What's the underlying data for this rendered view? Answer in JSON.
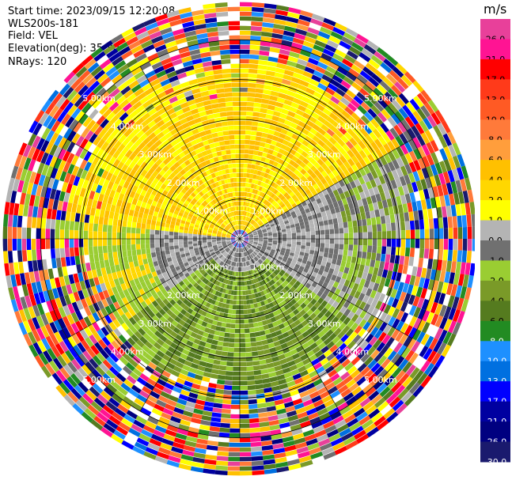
{
  "header": {
    "start_time": "Start time: 2023/09/15 12:20:08",
    "site": "WLS200s-181",
    "field": "Field: VEL",
    "elevation": "Elevation(deg): 35.30",
    "nrays": "NRays: 120"
  },
  "chart_data": {
    "type": "heatmap",
    "projection": "polar-ppi",
    "title": "",
    "rays": 120,
    "range_ring_labels": [
      "1.00km",
      "2.00km",
      "3.00km",
      "4.00km",
      "5.00km"
    ],
    "colorbar": {
      "unit": "m/s",
      "ticks": [
        "26.0",
        "21.0",
        "17.0",
        "13.0",
        "10.0",
        "8.0",
        "6.0",
        "4.0",
        "2.0",
        "1.0",
        "0.0",
        "-1.0",
        "-2.0",
        "-4.0",
        "-6.0",
        "-8.0",
        "-10.0",
        "-13.0",
        "-17.0",
        "-21.0",
        "-26.0",
        "-30.0"
      ],
      "colors": [
        "#e8409a",
        "#ff1493",
        "#ff0000",
        "#ff3a1a",
        "#ff5a24",
        "#ff7a3a",
        "#ff9e3c",
        "#ffc000",
        "#ffd700",
        "#ffff00",
        "#b4b4b4",
        "#707070",
        "#9acd32",
        "#7a9a28",
        "#557b1f",
        "#228b22",
        "#1e90ff",
        "#0070e0",
        "#0000ff",
        "#0000a0",
        "#000080",
        "#1a1a6e"
      ]
    }
  }
}
